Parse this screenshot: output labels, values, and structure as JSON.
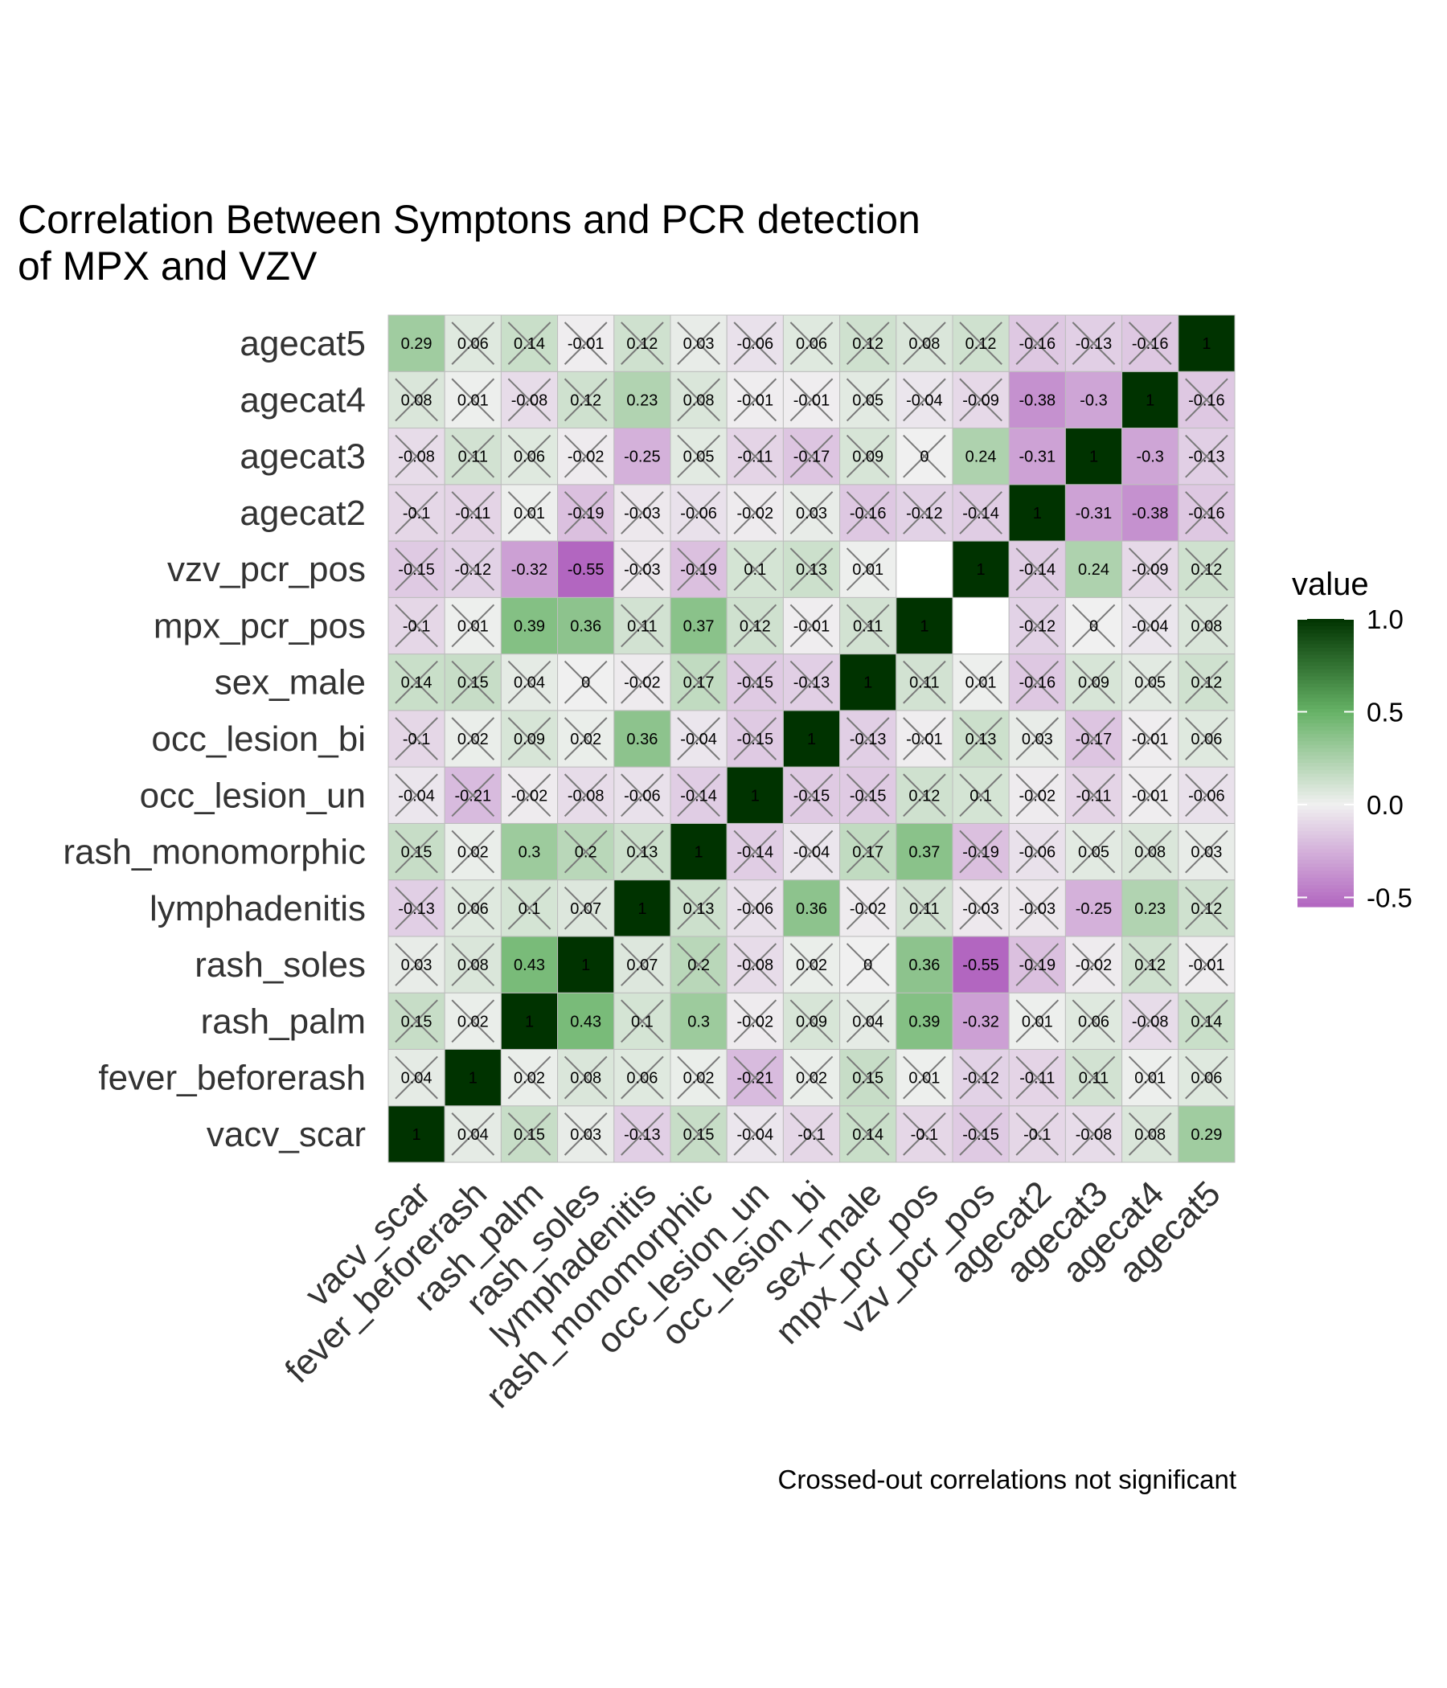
{
  "chart_data": {
    "type": "heatmap",
    "title_lines": [
      "Correlation Between Symptons and PCR detection",
      "of MPX and VZV"
    ],
    "xlabel": "",
    "ylabel": "",
    "variables": [
      "vacv_scar",
      "fever_beforerash",
      "rash_palm",
      "rash_soles",
      "lymphadenitis",
      "rash_monomorphic",
      "occ_lesion_un",
      "occ_lesion_bi",
      "sex_male",
      "mpx_pcr_pos",
      "vzv_pcr_pos",
      "agecat2",
      "agecat3",
      "agecat4",
      "agecat5"
    ],
    "matrix": [
      [
        1,
        0.04,
        0.15,
        0.03,
        -0.13,
        0.15,
        -0.04,
        -0.1,
        0.14,
        -0.1,
        -0.15,
        -0.1,
        -0.08,
        0.08,
        0.29
      ],
      [
        0.04,
        1,
        0.02,
        0.08,
        0.06,
        0.02,
        -0.21,
        0.02,
        0.15,
        0.01,
        -0.12,
        -0.11,
        0.11,
        0.01,
        0.06
      ],
      [
        0.15,
        0.02,
        1,
        0.43,
        0.1,
        0.3,
        -0.02,
        0.09,
        0.04,
        0.39,
        -0.32,
        0.01,
        0.06,
        -0.08,
        0.14
      ],
      [
        0.03,
        0.08,
        0.43,
        1,
        0.07,
        0.2,
        -0.08,
        0.02,
        0,
        0.36,
        -0.55,
        -0.19,
        -0.02,
        0.12,
        -0.01
      ],
      [
        -0.13,
        0.06,
        0.1,
        0.07,
        1,
        0.13,
        -0.06,
        0.36,
        -0.02,
        0.11,
        -0.03,
        -0.03,
        -0.25,
        0.23,
        0.12
      ],
      [
        0.15,
        0.02,
        0.3,
        0.2,
        0.13,
        1,
        -0.14,
        -0.04,
        0.17,
        0.37,
        -0.19,
        -0.06,
        0.05,
        0.08,
        0.03
      ],
      [
        -0.04,
        -0.21,
        -0.02,
        -0.08,
        -0.06,
        -0.14,
        1,
        -0.15,
        -0.15,
        0.12,
        0.1,
        -0.02,
        -0.11,
        -0.01,
        -0.06
      ],
      [
        -0.1,
        0.02,
        0.09,
        0.02,
        0.36,
        -0.04,
        -0.15,
        1,
        -0.13,
        -0.01,
        0.13,
        0.03,
        -0.17,
        -0.01,
        0.06
      ],
      [
        0.14,
        0.15,
        0.04,
        0,
        -0.02,
        0.17,
        -0.15,
        -0.13,
        1,
        0.11,
        0.01,
        -0.16,
        0.09,
        0.05,
        0.12
      ],
      [
        -0.1,
        0.01,
        0.39,
        0.36,
        0.11,
        0.37,
        0.12,
        -0.01,
        0.11,
        1,
        null,
        -0.12,
        0,
        -0.04,
        0.08
      ],
      [
        -0.15,
        -0.12,
        -0.32,
        -0.55,
        -0.03,
        -0.19,
        0.1,
        0.13,
        0.01,
        null,
        1,
        -0.14,
        0.24,
        -0.09,
        0.12
      ],
      [
        -0.1,
        -0.11,
        0.01,
        -0.19,
        -0.03,
        -0.06,
        -0.02,
        0.03,
        -0.16,
        -0.12,
        -0.14,
        1,
        -0.31,
        -0.38,
        -0.16
      ],
      [
        -0.08,
        0.11,
        0.06,
        -0.02,
        -0.25,
        0.05,
        -0.11,
        -0.17,
        0.09,
        0,
        0.24,
        -0.31,
        1,
        -0.3,
        -0.13
      ],
      [
        0.08,
        0.01,
        -0.08,
        0.12,
        0.23,
        0.08,
        -0.01,
        -0.01,
        0.05,
        -0.04,
        -0.09,
        -0.38,
        -0.3,
        1,
        -0.16
      ],
      [
        0.29,
        0.06,
        0.14,
        -0.01,
        0.12,
        0.03,
        -0.06,
        0.06,
        0.12,
        0.08,
        0.12,
        -0.16,
        -0.13,
        -0.16,
        1
      ]
    ],
    "significant": [
      [
        true,
        false,
        false,
        false,
        false,
        false,
        false,
        false,
        false,
        false,
        false,
        false,
        false,
        false,
        true
      ],
      [
        false,
        true,
        false,
        false,
        false,
        false,
        false,
        false,
        false,
        false,
        false,
        false,
        false,
        false,
        false
      ],
      [
        false,
        false,
        true,
        true,
        false,
        true,
        false,
        false,
        false,
        true,
        true,
        false,
        false,
        false,
        false
      ],
      [
        false,
        false,
        true,
        true,
        false,
        false,
        false,
        false,
        false,
        true,
        true,
        false,
        false,
        false,
        false
      ],
      [
        false,
        false,
        false,
        false,
        true,
        false,
        false,
        true,
        false,
        false,
        false,
        false,
        true,
        true,
        false
      ],
      [
        false,
        false,
        true,
        false,
        false,
        true,
        false,
        false,
        false,
        true,
        false,
        false,
        false,
        false,
        false
      ],
      [
        false,
        false,
        false,
        false,
        false,
        false,
        true,
        false,
        false,
        false,
        false,
        false,
        false,
        false,
        false
      ],
      [
        false,
        false,
        false,
        false,
        true,
        false,
        false,
        true,
        false,
        false,
        false,
        false,
        false,
        false,
        false
      ],
      [
        false,
        false,
        false,
        false,
        false,
        false,
        false,
        false,
        true,
        false,
        false,
        false,
        false,
        false,
        false
      ],
      [
        false,
        false,
        true,
        true,
        false,
        true,
        false,
        false,
        false,
        true,
        false,
        false,
        false,
        false,
        false
      ],
      [
        false,
        false,
        true,
        true,
        false,
        false,
        false,
        false,
        false,
        false,
        true,
        false,
        true,
        false,
        false
      ],
      [
        false,
        false,
        false,
        false,
        false,
        false,
        false,
        false,
        false,
        false,
        false,
        true,
        true,
        true,
        false
      ],
      [
        false,
        false,
        false,
        false,
        true,
        false,
        false,
        false,
        false,
        false,
        true,
        true,
        true,
        true,
        false
      ],
      [
        false,
        false,
        false,
        false,
        true,
        false,
        false,
        false,
        false,
        false,
        false,
        true,
        true,
        true,
        false
      ],
      [
        true,
        false,
        false,
        false,
        false,
        false,
        false,
        false,
        false,
        false,
        false,
        false,
        false,
        false,
        true
      ]
    ],
    "legend": {
      "title": "value",
      "placement": "right",
      "ticks": [
        "1.0",
        "0.5",
        "0.0",
        "-0.5"
      ],
      "tick_values": [
        1.0,
        0.5,
        0.0,
        -0.5
      ],
      "range": [
        -0.55,
        1.0
      ]
    },
    "caption": "Crossed-out correlations not significant",
    "colors": {
      "high": "#003300",
      "mid_pos": "#66b266",
      "zero": "#f0f0f0",
      "negative": "#b266c0",
      "missing": "#ffffff",
      "cross": "#7a7a7a",
      "grid": "#bdbdbd"
    }
  }
}
